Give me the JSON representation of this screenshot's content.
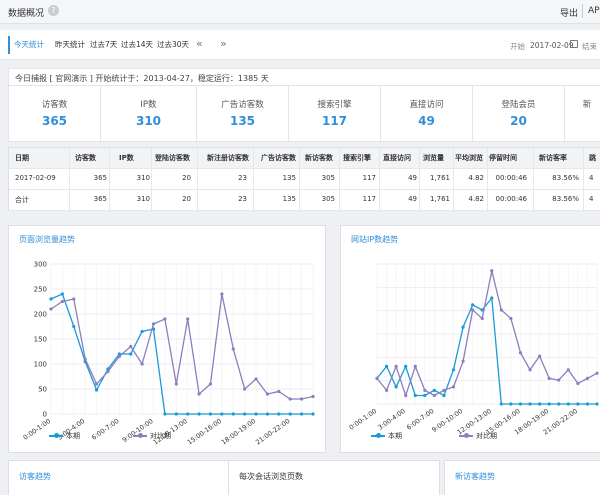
{
  "header": {
    "title": "数据概况",
    "help_icon": "?",
    "export": "导出",
    "api": "AP"
  },
  "tabs": {
    "items": [
      "今天统计",
      "昨天统计",
      "过去7天",
      "过去14天",
      "过去30天"
    ],
    "prev": "«",
    "next": "»",
    "start_label": "开始",
    "start_date": "2017-02-09",
    "end_label": "结束"
  },
  "info": "今日捕报 [ 官网演示 ] 开始统计于：2013-04-27，稳定运行：1385 天",
  "summary": [
    {
      "label": "访客数",
      "value": "365"
    },
    {
      "label": "IP数",
      "value": "310"
    },
    {
      "label": "广告访客数",
      "value": "135"
    },
    {
      "label": "搜索引擎",
      "value": "117"
    },
    {
      "label": "直接访问",
      "value": "49"
    },
    {
      "label": "登陆会员",
      "value": "20"
    },
    {
      "label": "新",
      "value": ""
    }
  ],
  "table": {
    "headers": [
      "日期",
      "访客数",
      "IP数",
      "登陆访客数",
      "新注册访客数",
      "广告访客数",
      "新访客数",
      "搜索引擎",
      "直接访问",
      "浏览量",
      "平均浏览",
      "停留时间",
      "新访客率",
      "跳"
    ],
    "rows": [
      [
        "2017-02-09",
        "365",
        "310",
        "20",
        "23",
        "135",
        "305",
        "117",
        "49",
        "1,761",
        "4.82",
        "00:00:46",
        "83.56%",
        "4"
      ],
      [
        "合计",
        "365",
        "310",
        "20",
        "23",
        "135",
        "305",
        "117",
        "49",
        "1,761",
        "4.82",
        "00:00:46",
        "83.56%",
        "4"
      ]
    ]
  },
  "chart_data": [
    {
      "type": "line",
      "title": "页面浏览量趋势",
      "x": [
        "0:00-1:00",
        "1:00-2:00",
        "2:00-3:00",
        "3:00-4:00",
        "4:00-5:00",
        "5:00-6:00",
        "6:00-7:00",
        "7:00-8:00",
        "8:00-9:00",
        "9:00-10:00",
        "10:00-11:00",
        "11:00-12:00",
        "12:00-13:00",
        "13:00-14:00",
        "14:00-15:00",
        "15:00-16:00",
        "16:00-17:00",
        "17:00-18:00",
        "18:00-19:00",
        "19:00-20:00",
        "20:00-21:00",
        "21:00-22:00",
        "22:00-23:00",
        "23:00-24:00"
      ],
      "xtick_labels": [
        "0:00-1:00",
        "3:00-4:00",
        "6:00-7:00",
        "9:00-10:00",
        "12:00-13:00",
        "15:00-16:00",
        "18:00-19:00",
        "21:00-22:00"
      ],
      "ylim": [
        0,
        300
      ],
      "yticks": [
        0,
        50,
        100,
        150,
        200,
        250,
        300
      ],
      "series": [
        {
          "name": "本期",
          "color": "#1a9ad6",
          "values": [
            230,
            240,
            175,
            105,
            48,
            90,
            120,
            120,
            165,
            170,
            0,
            0,
            0,
            0,
            0,
            0,
            0,
            0,
            0,
            0,
            0,
            0,
            0,
            0
          ],
          "note_visible_points": 11
        },
        {
          "name": "对比期",
          "color": "#8a7fc0",
          "values": [
            210,
            225,
            230,
            110,
            60,
            85,
            115,
            135,
            100,
            180,
            190,
            60,
            190,
            40,
            60,
            240,
            130,
            50,
            70,
            40,
            45,
            30,
            30,
            35
          ]
        }
      ],
      "grid": true,
      "legend": "bottom"
    },
    {
      "type": "line",
      "title": "网站IP数趋势",
      "x": [
        "0:00-1:00",
        "1:00-2:00",
        "2:00-3:00",
        "3:00-4:00",
        "4:00-5:00",
        "5:00-6:00",
        "6:00-7:00",
        "7:00-8:00",
        "8:00-9:00",
        "9:00-10:00",
        "10:00-11:00",
        "11:00-12:00",
        "12:00-13:00",
        "13:00-14:00",
        "14:00-15:00",
        "15:00-16:00",
        "16:00-17:00",
        "17:00-18:00",
        "18:00-19:00",
        "19:00-20:00",
        "20:00-21:00",
        "21:00-22:00",
        "22:00-23:00",
        "23:00-24:00"
      ],
      "xtick_labels": [
        "0:00-1:00",
        "3:00-4:00",
        "6:00-7:00",
        "9:00-10:00",
        "12:00-13:00",
        "15:00-16:00",
        "18:00-19:00",
        "21:00-22:00"
      ],
      "series": [
        {
          "name": "本期",
          "color": "#1a9ad6",
          "values": [
            15,
            22,
            10,
            22,
            5,
            5,
            8,
            5,
            20,
            45,
            58,
            55,
            62,
            0,
            0,
            0,
            0,
            0,
            0,
            0,
            0,
            0,
            0,
            0
          ]
        },
        {
          "name": "对比期",
          "color": "#8a7fc0",
          "values": [
            15,
            8,
            22,
            5,
            22,
            8,
            5,
            8,
            10,
            25,
            55,
            50,
            78,
            55,
            50,
            30,
            20,
            28,
            15,
            14,
            20,
            12,
            15,
            18
          ]
        }
      ],
      "grid": true,
      "legend": "bottom"
    }
  ],
  "bottom_panels": [
    {
      "title": "访客趋势",
      "color": "#2f8fdb"
    },
    {
      "title": "每次会话浏览页数",
      "color": "#333333"
    },
    {
      "title": "新访客趋势",
      "color": "#2f8fdb"
    }
  ],
  "legend_labels": {
    "current": "本期",
    "compare": "对比期"
  }
}
